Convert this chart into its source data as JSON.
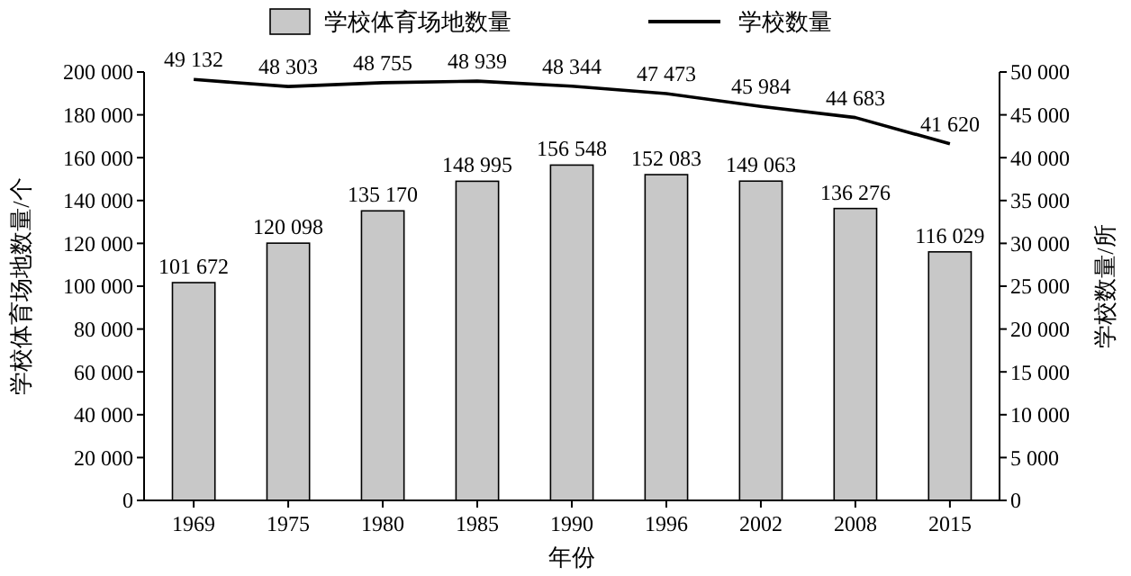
{
  "chart_data": {
    "type": "bar",
    "xlabel": "年份",
    "ylabel": "学校体育场地数量/个",
    "y2label": "学校数量/所",
    "legend": "top",
    "categories": [
      "1969",
      "1975",
      "1980",
      "1985",
      "1990",
      "1996",
      "2002",
      "2008",
      "2015"
    ],
    "ylim": [
      0,
      200000
    ],
    "yticks": [
      0,
      {
        "value": 20000,
        "label": "20 000"
      },
      {
        "value": 40000,
        "label": "40 000"
      },
      {
        "value": 60000,
        "label": "60 000"
      },
      {
        "value": 80000,
        "label": "80 000"
      },
      {
        "value": 100000,
        "label": "100 000"
      },
      {
        "value": 120000,
        "label": "120 000"
      },
      {
        "value": 140000,
        "label": "140 000"
      },
      {
        "value": 160000,
        "label": "160 000"
      },
      {
        "value": 180000,
        "label": "180 000"
      },
      {
        "value": 200000,
        "label": "200 000"
      }
    ],
    "y2lim": [
      0,
      50000
    ],
    "y2ticks": [
      0,
      {
        "value": 5000,
        "label": "5 000"
      },
      {
        "value": 10000,
        "label": "10 000"
      },
      {
        "value": 15000,
        "label": "15 000"
      },
      {
        "value": 20000,
        "label": "20 000"
      },
      {
        "value": 25000,
        "label": "25 000"
      },
      {
        "value": 30000,
        "label": "30 000"
      },
      {
        "value": 35000,
        "label": "35 000"
      },
      {
        "value": 40000,
        "label": "40 000"
      },
      {
        "value": 45000,
        "label": "45 000"
      },
      {
        "value": 50000,
        "label": "50 000"
      }
    ],
    "series": [
      {
        "name": "学校体育场地数量",
        "color": "#c8c8c8",
        "values": [
          101672,
          120098,
          135170,
          148995,
          156548,
          152083,
          149063,
          136276,
          116029
        ],
        "value_labels": [
          "101 672",
          "120 098",
          "135 170",
          "148 995",
          "156 548",
          "152 083",
          "149 063",
          "136 276",
          "116 029"
        ]
      },
      {
        "name": "学校数量",
        "type": "line",
        "axis": "y2",
        "color": "#000000",
        "values": [
          49132,
          48303,
          48755,
          48939,
          48344,
          47473,
          45984,
          44683,
          41620
        ],
        "value_labels": [
          "49 132",
          "48 303",
          "48 755",
          "48 939",
          "48 344",
          "47 473",
          "45 984",
          "44 683",
          "41 620"
        ]
      }
    ]
  }
}
